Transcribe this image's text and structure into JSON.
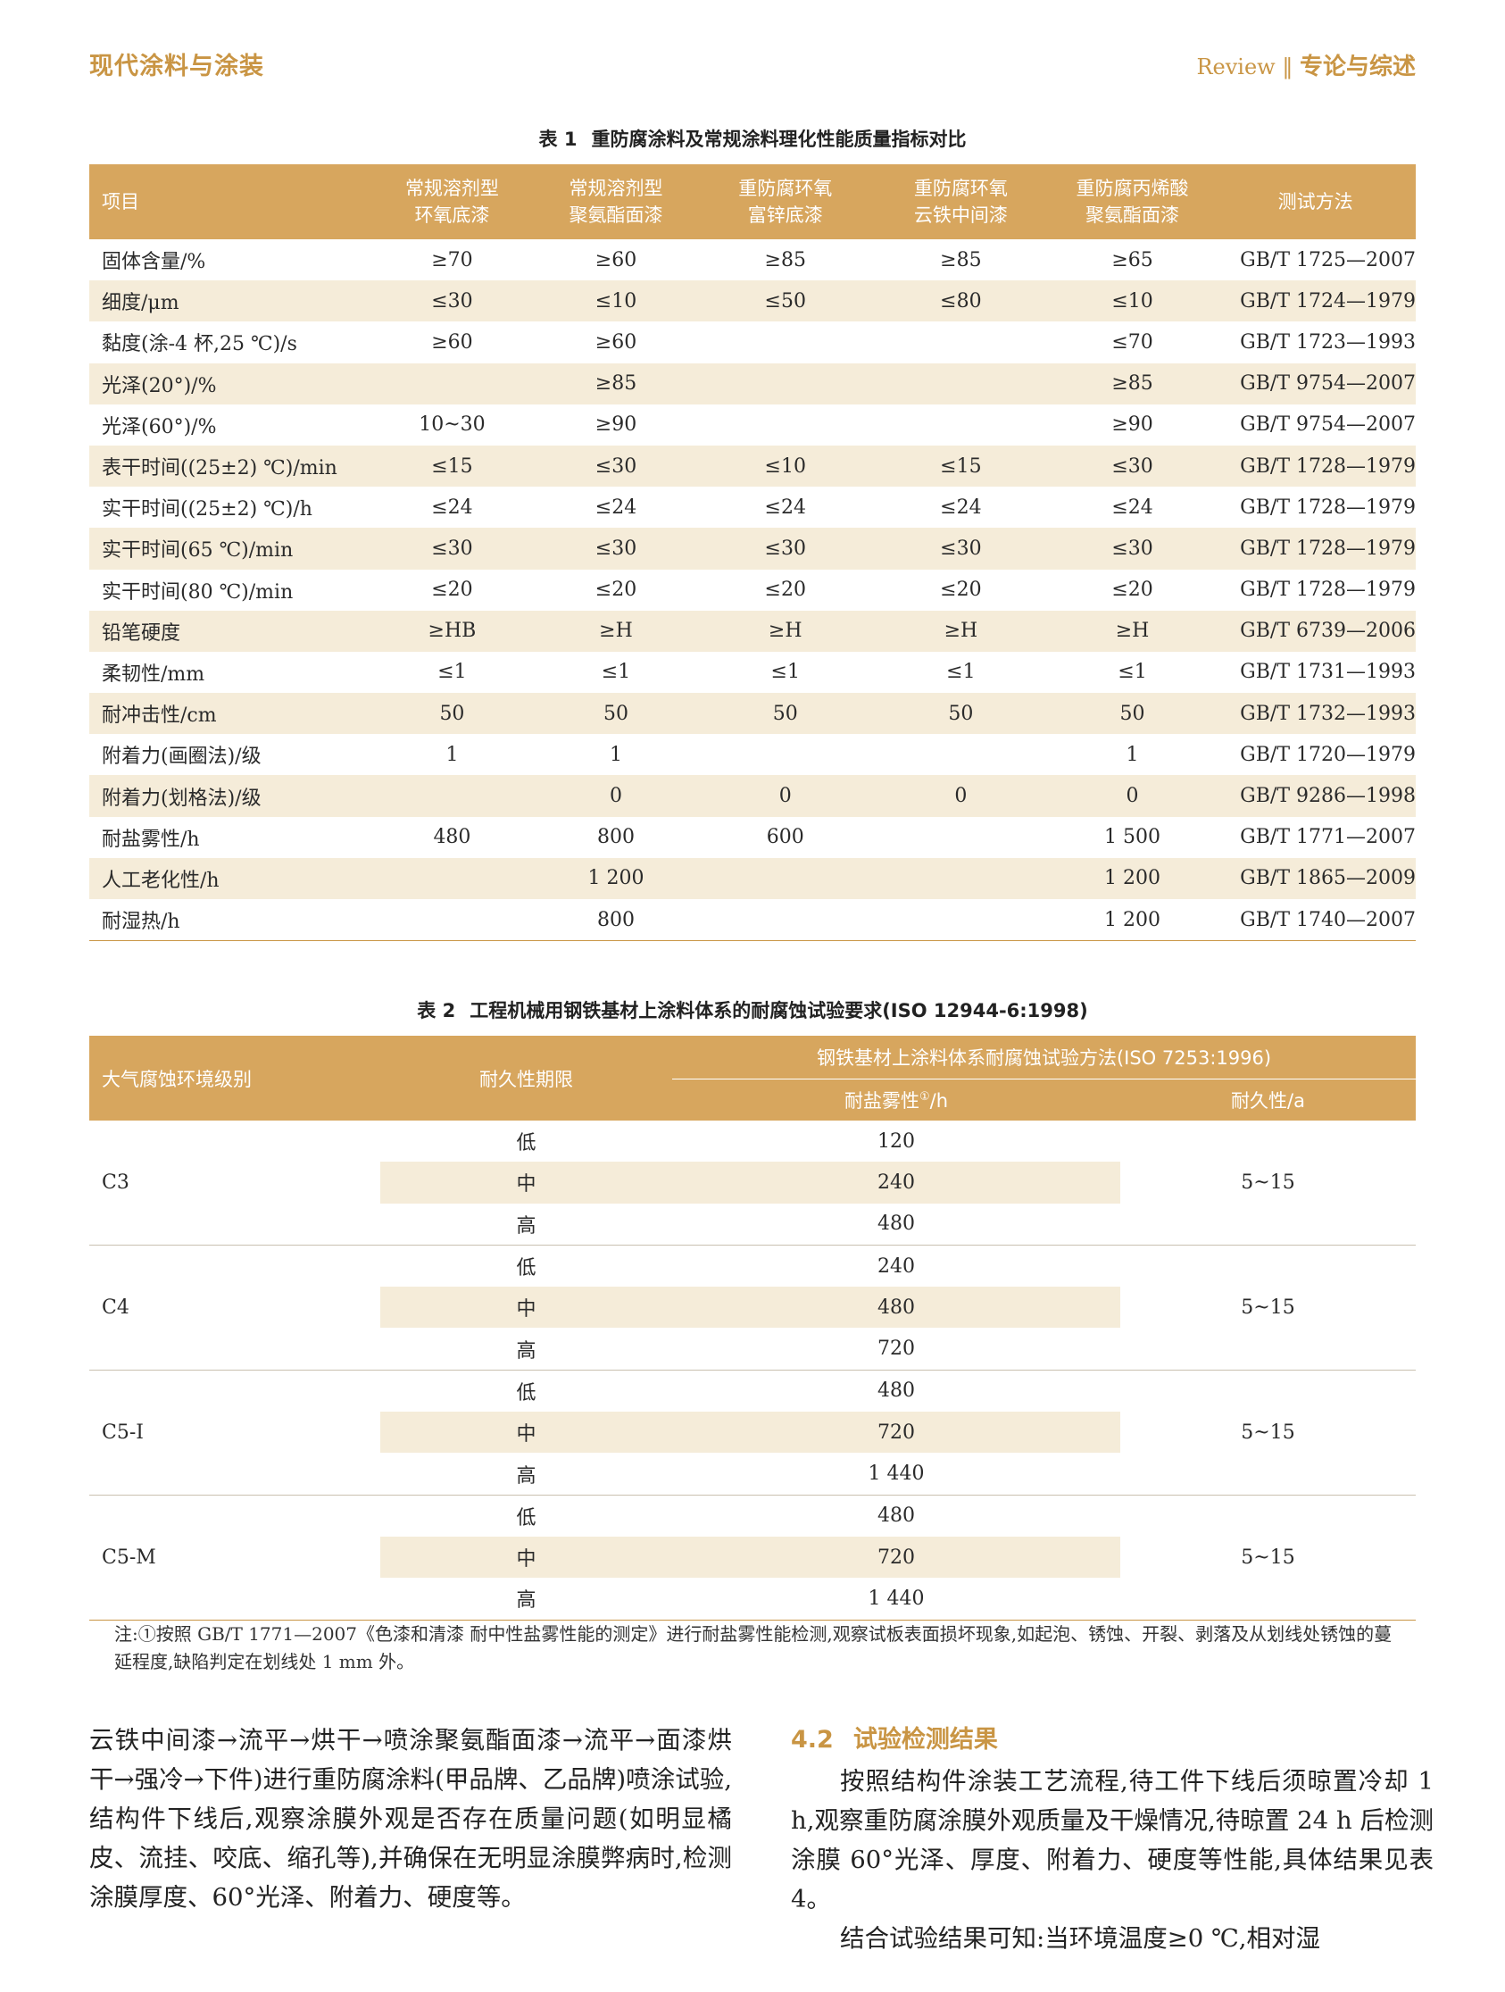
{
  "header": {
    "journal": "现代涂料与涂装",
    "review": "Review",
    "divider": "‖",
    "section": "专论与综述"
  },
  "table1": {
    "caption_num": "表 1",
    "caption": "重防腐涂料及常规涂料理化性能质量指标对比",
    "headers": [
      {
        "l1": "项目",
        "l2": ""
      },
      {
        "l1": "常规溶剂型",
        "l2": "环氧底漆"
      },
      {
        "l1": "常规溶剂型",
        "l2": "聚氨酯面漆"
      },
      {
        "l1": "重防腐环氧",
        "l2": "富锌底漆"
      },
      {
        "l1": "重防腐环氧",
        "l2": "云铁中间漆"
      },
      {
        "l1": "重防腐丙烯酸",
        "l2": "聚氨酯面漆"
      },
      {
        "l1": "测试方法",
        "l2": ""
      }
    ],
    "rows": [
      [
        "固体含量/%",
        "≥70",
        "≥60",
        "≥85",
        "≥85",
        "≥65",
        "GB/T 1725—2007"
      ],
      [
        "细度/μm",
        "≤30",
        "≤10",
        "≤50",
        "≤80",
        "≤10",
        "GB/T 1724—1979"
      ],
      [
        "黏度(涂-4 杯,25 ℃)/s",
        "≥60",
        "≥60",
        "",
        "",
        "≤70",
        "GB/T 1723—1993"
      ],
      [
        "光泽(20°)/%",
        "",
        "≥85",
        "",
        "",
        "≥85",
        "GB/T 9754—2007"
      ],
      [
        "光泽(60°)/%",
        "10~30",
        "≥90",
        "",
        "",
        "≥90",
        "GB/T 9754—2007"
      ],
      [
        "表干时间((25±2) ℃)/min",
        "≤15",
        "≤30",
        "≤10",
        "≤15",
        "≤30",
        "GB/T 1728—1979"
      ],
      [
        "实干时间((25±2) ℃)/h",
        "≤24",
        "≤24",
        "≤24",
        "≤24",
        "≤24",
        "GB/T 1728—1979"
      ],
      [
        "实干时间(65 ℃)/min",
        "≤30",
        "≤30",
        "≤30",
        "≤30",
        "≤30",
        "GB/T 1728—1979"
      ],
      [
        "实干时间(80 ℃)/min",
        "≤20",
        "≤20",
        "≤20",
        "≤20",
        "≤20",
        "GB/T 1728—1979"
      ],
      [
        "铅笔硬度",
        "≥HB",
        "≥H",
        "≥H",
        "≥H",
        "≥H",
        "GB/T 6739—2006"
      ],
      [
        "柔韧性/mm",
        "≤1",
        "≤1",
        "≤1",
        "≤1",
        "≤1",
        "GB/T 1731—1993"
      ],
      [
        "耐冲击性/cm",
        "50",
        "50",
        "50",
        "50",
        "50",
        "GB/T 1732—1993"
      ],
      [
        "附着力(画圈法)/级",
        "1",
        "1",
        "",
        "",
        "1",
        "GB/T 1720—1979"
      ],
      [
        "附着力(划格法)/级",
        "",
        "0",
        "0",
        "0",
        "0",
        "GB/T 9286—1998"
      ],
      [
        "耐盐雾性/h",
        "480",
        "800",
        "600",
        "",
        "1 500",
        "GB/T 1771—2007"
      ],
      [
        "人工老化性/h",
        "",
        "1 200",
        "",
        "",
        "1 200",
        "GB/T 1865—2009"
      ],
      [
        "耐湿热/h",
        "",
        "800",
        "",
        "",
        "1 200",
        "GB/T 1740—2007"
      ]
    ]
  },
  "table2": {
    "caption_num": "表 2",
    "caption": "工程机械用钢铁基材上涂料体系的耐腐蚀试验要求(ISO 12944-6:1998)",
    "header_env": "大气腐蚀环境级别",
    "header_durability": "耐久性期限",
    "header_method": "钢铁基材上涂料体系耐腐蚀试验方法(ISO 7253:1996)",
    "header_salt": "耐盐雾性",
    "header_salt_sup": "①",
    "header_salt_unit": "/h",
    "header_years": "耐久性/a",
    "groups": [
      {
        "grade": "C3",
        "years": "5~15",
        "rows": [
          [
            "低",
            "120"
          ],
          [
            "中",
            "240"
          ],
          [
            "高",
            "480"
          ]
        ]
      },
      {
        "grade": "C4",
        "years": "5~15",
        "rows": [
          [
            "低",
            "240"
          ],
          [
            "中",
            "480"
          ],
          [
            "高",
            "720"
          ]
        ]
      },
      {
        "grade": "C5-I",
        "years": "5~15",
        "rows": [
          [
            "低",
            "480"
          ],
          [
            "中",
            "720"
          ],
          [
            "高",
            "1 440"
          ]
        ]
      },
      {
        "grade": "C5-M",
        "years": "5~15",
        "rows": [
          [
            "低",
            "480"
          ],
          [
            "中",
            "720"
          ],
          [
            "高",
            "1 440"
          ]
        ]
      }
    ],
    "note": "注:①按照 GB/T 1771—2007《色漆和清漆 耐中性盐雾性能的测定》进行耐盐雾性能检测,观察试板表面损坏现象,如起泡、锈蚀、开裂、剥落及从划线处锈蚀的蔓延程度,缺陷判定在划线处 1 mm 外。"
  },
  "body": {
    "left_text": "云铁中间漆→流平→烘干→喷涂聚氨酯面漆→流平→面漆烘干→强冷→下件)进行重防腐涂料(甲品牌、乙品牌)喷涂试验,结构件下线后,观察涂膜外观是否存在质量问题(如明显橘皮、流挂、咬底、缩孔等),并确保在无明显涂膜弊病时,检测涂膜厚度、60°光泽、附着力、硬度等。",
    "section_num": "4.2",
    "section_title": "试验检测结果",
    "right_p1": "按照结构件涂装工艺流程,待工件下线后须晾置冷却 1 h,观察重防腐涂膜外观质量及干燥情况,待晾置 24 h 后检测涂膜 60°光泽、厚度、附着力、硬度等性能,具体结果见表 4。",
    "right_p2": "结合试验结果可知:当环境温度≥0 ℃,相对湿"
  }
}
